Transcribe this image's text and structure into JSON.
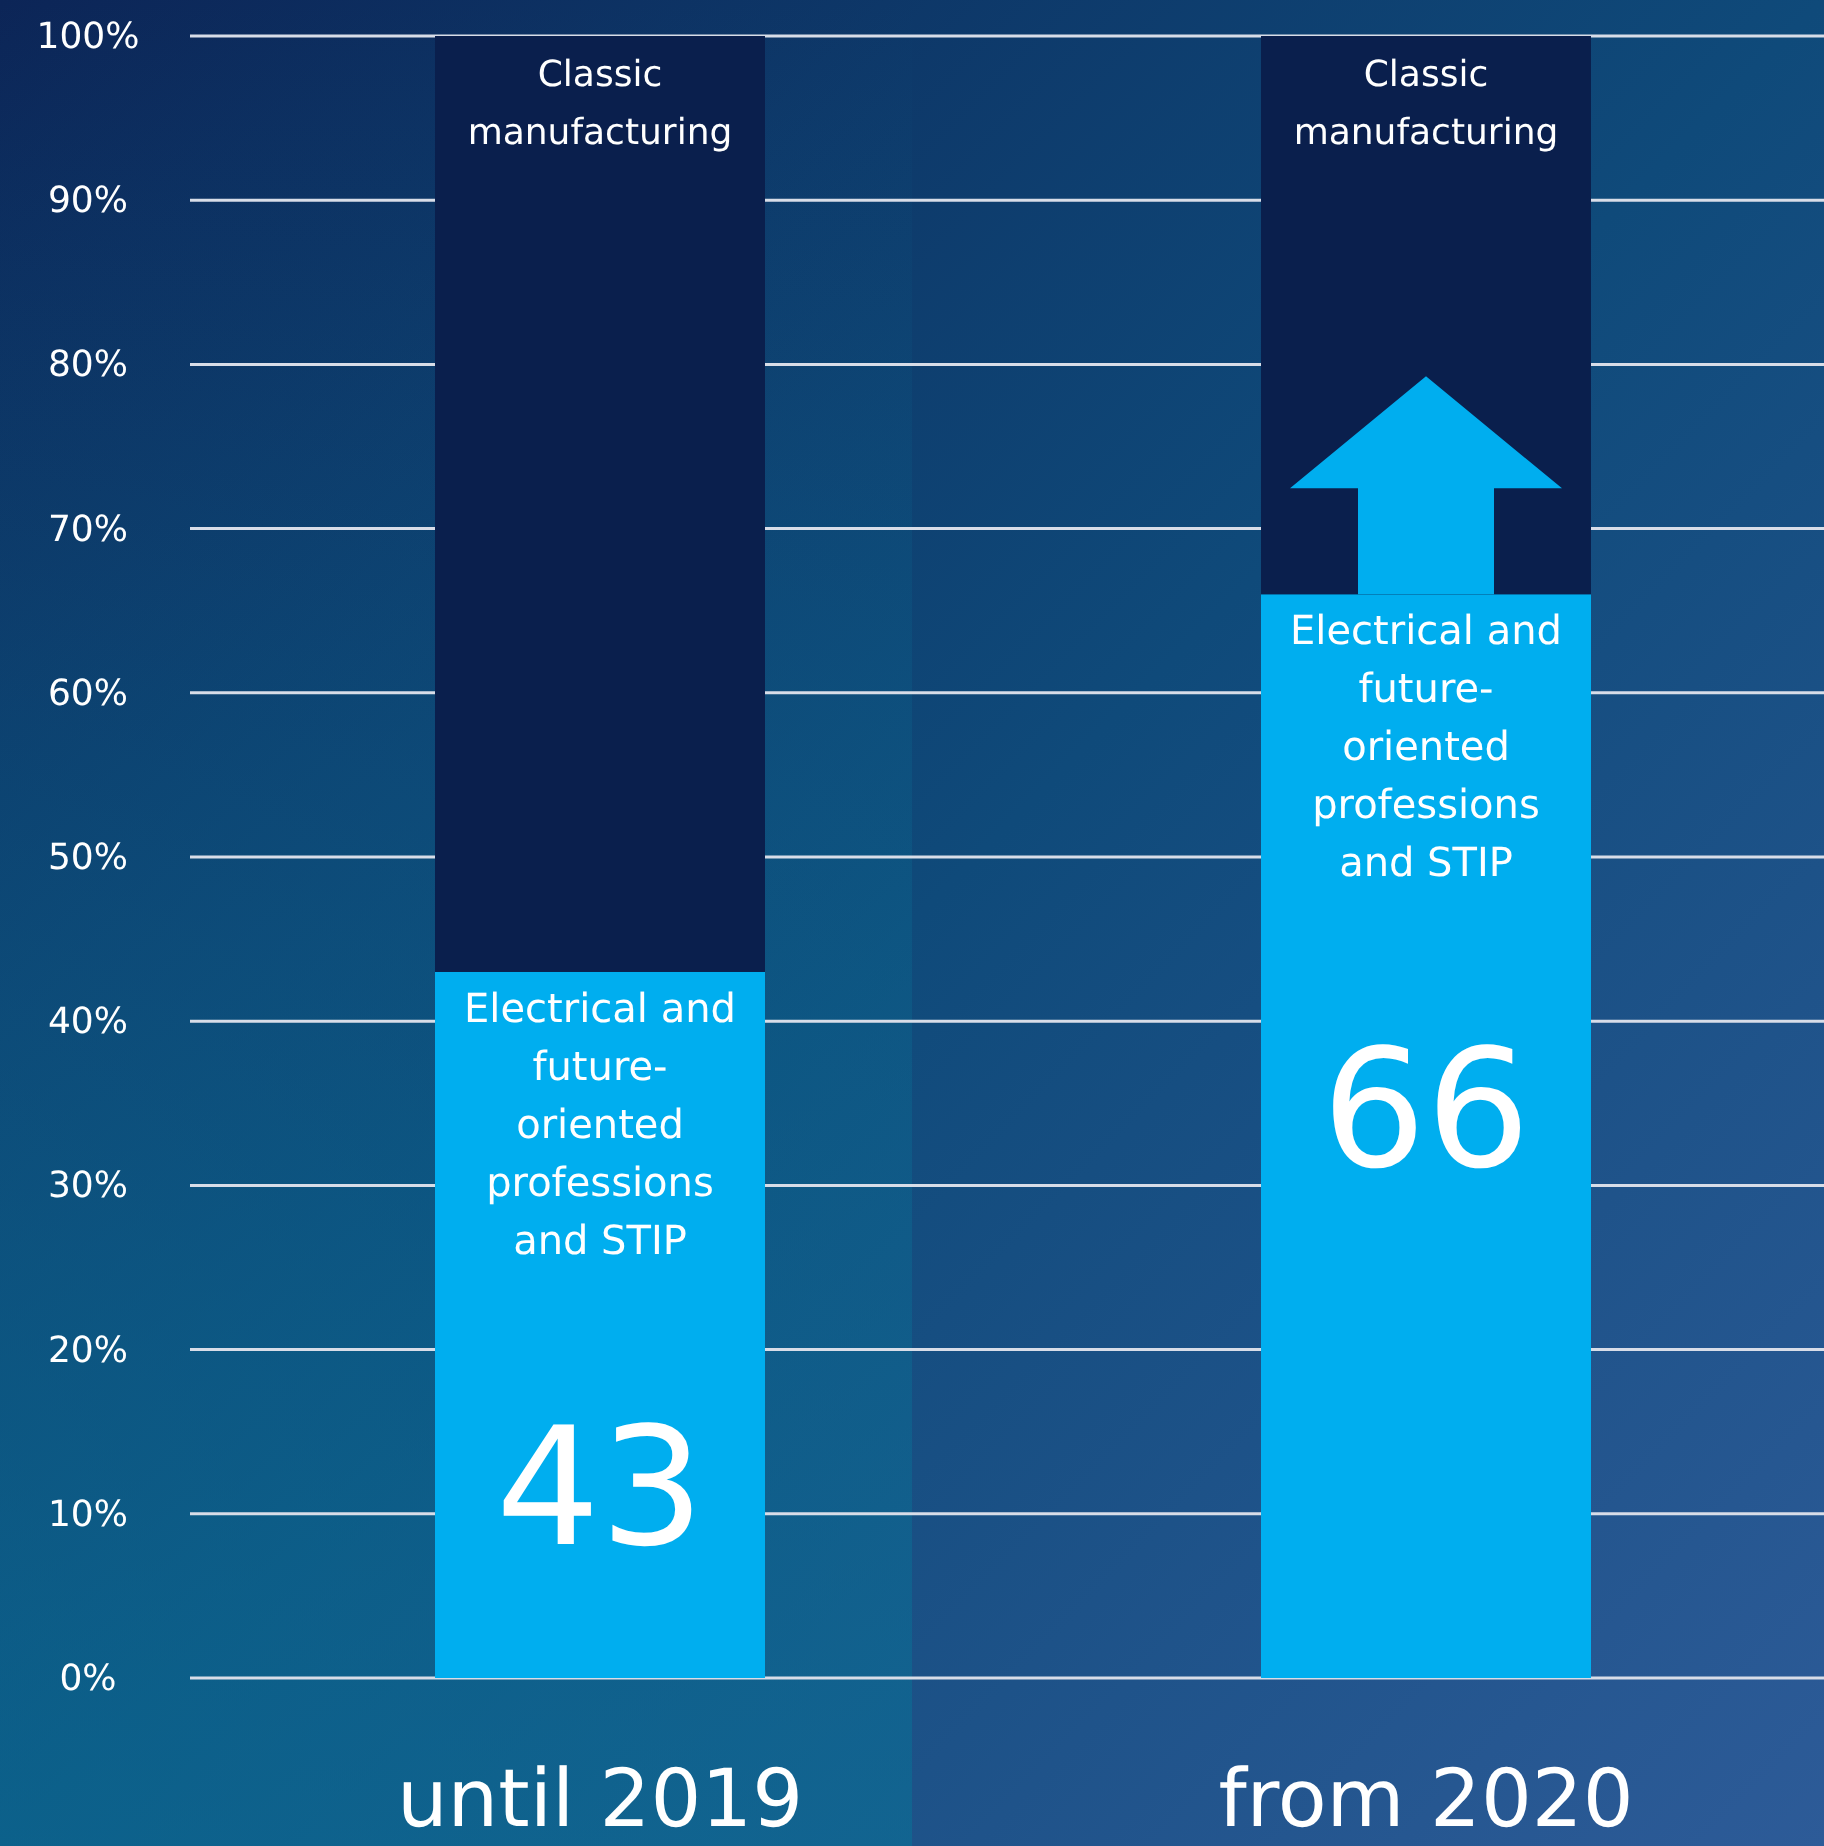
{
  "chart_data": {
    "type": "bar",
    "stacked": true,
    "categories": [
      "until 2019",
      "from 2020"
    ],
    "series": [
      {
        "name": "Electrical and future-oriented professions and STIP",
        "color": "#00aeef",
        "values": [
          43,
          66
        ],
        "value_labels": [
          "43",
          "66"
        ]
      },
      {
        "name": "Classic manufacturing",
        "color": "#0a1f4d",
        "values": [
          57,
          34
        ]
      }
    ],
    "ylim": [
      0,
      100
    ],
    "yticks": [
      {
        "value": 0,
        "label": "0%"
      },
      {
        "value": 10,
        "label": "10%"
      },
      {
        "value": 20,
        "label": "20%"
      },
      {
        "value": 30,
        "label": "30%"
      },
      {
        "value": 40,
        "label": "40%"
      },
      {
        "value": 50,
        "label": "50%"
      },
      {
        "value": 60,
        "label": "60%"
      },
      {
        "value": 70,
        "label": "70%"
      },
      {
        "value": 80,
        "label": "80%"
      },
      {
        "value": 90,
        "label": "90%"
      },
      {
        "value": 100,
        "label": "100%"
      }
    ],
    "grid": "y"
  }
}
